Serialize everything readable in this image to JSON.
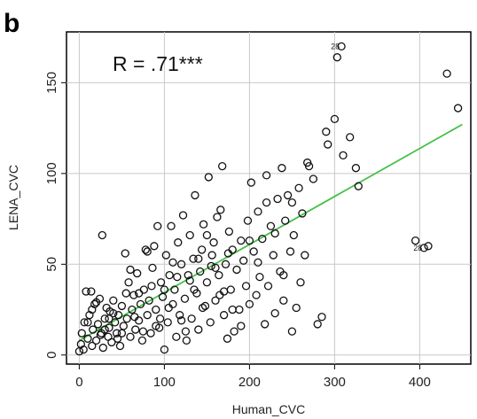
{
  "panel_label": "b",
  "chart_data": {
    "type": "scatter",
    "xlabel": "Human_CVC",
    "ylabel": "LENA_CVC",
    "xlim": [
      -15,
      460
    ],
    "ylim": [
      -5,
      178
    ],
    "xticks": [
      0,
      100,
      200,
      300,
      400
    ],
    "yticks": [
      0,
      50,
      100,
      150
    ],
    "grid": true,
    "annotation": "R = .71***",
    "regression": {
      "x": [
        0,
        450
      ],
      "y": [
        8,
        127
      ],
      "color": "#44c044"
    },
    "point_color": "#111111",
    "labeled_points": [
      {
        "label": "28",
        "x": 308,
        "y": 170
      },
      {
        "label": "28",
        "x": 405,
        "y": 59
      }
    ],
    "points": [
      [
        0,
        2
      ],
      [
        2,
        6
      ],
      [
        3,
        12
      ],
      [
        5,
        3
      ],
      [
        6,
        18
      ],
      [
        8,
        35
      ],
      [
        10,
        9
      ],
      [
        12,
        22
      ],
      [
        14,
        35
      ],
      [
        15,
        5
      ],
      [
        16,
        14
      ],
      [
        18,
        28
      ],
      [
        20,
        8
      ],
      [
        22,
        17
      ],
      [
        24,
        31
      ],
      [
        26,
        12
      ],
      [
        27,
        66
      ],
      [
        28,
        4
      ],
      [
        30,
        20
      ],
      [
        32,
        26
      ],
      [
        34,
        10
      ],
      [
        35,
        15
      ],
      [
        36,
        24
      ],
      [
        38,
        7
      ],
      [
        40,
        30
      ],
      [
        42,
        18
      ],
      [
        44,
        12
      ],
      [
        46,
        22
      ],
      [
        48,
        5
      ],
      [
        50,
        27
      ],
      [
        52,
        16
      ],
      [
        54,
        56
      ],
      [
        56,
        20
      ],
      [
        58,
        40
      ],
      [
        60,
        10
      ],
      [
        62,
        25
      ],
      [
        64,
        33
      ],
      [
        66,
        14
      ],
      [
        68,
        45
      ],
      [
        70,
        19
      ],
      [
        72,
        28
      ],
      [
        74,
        8
      ],
      [
        76,
        36
      ],
      [
        78,
        58
      ],
      [
        80,
        22
      ],
      [
        82,
        30
      ],
      [
        84,
        12
      ],
      [
        86,
        48
      ],
      [
        88,
        60
      ],
      [
        90,
        25
      ],
      [
        92,
        71
      ],
      [
        94,
        15
      ],
      [
        96,
        40
      ],
      [
        98,
        32
      ],
      [
        100,
        3
      ],
      [
        102,
        55
      ],
      [
        104,
        18
      ],
      [
        106,
        44
      ],
      [
        108,
        71
      ],
      [
        110,
        28
      ],
      [
        112,
        36
      ],
      [
        114,
        10
      ],
      [
        116,
        62
      ],
      [
        118,
        22
      ],
      [
        120,
        50
      ],
      [
        122,
        77
      ],
      [
        124,
        31
      ],
      [
        126,
        8
      ],
      [
        128,
        44
      ],
      [
        130,
        66
      ],
      [
        132,
        20
      ],
      [
        134,
        53
      ],
      [
        136,
        88
      ],
      [
        138,
        34
      ],
      [
        140,
        14
      ],
      [
        142,
        46
      ],
      [
        144,
        58
      ],
      [
        146,
        72
      ],
      [
        148,
        27
      ],
      [
        150,
        40
      ],
      [
        152,
        98
      ],
      [
        154,
        18
      ],
      [
        156,
        55
      ],
      [
        158,
        62
      ],
      [
        160,
        30
      ],
      [
        162,
        76
      ],
      [
        164,
        44
      ],
      [
        166,
        80
      ],
      [
        168,
        104
      ],
      [
        170,
        22
      ],
      [
        172,
        50
      ],
      [
        174,
        9
      ],
      [
        176,
        68
      ],
      [
        178,
        36
      ],
      [
        180,
        58
      ],
      [
        182,
        13
      ],
      [
        185,
        47
      ],
      [
        188,
        25
      ],
      [
        190,
        63
      ],
      [
        193,
        52
      ],
      [
        196,
        38
      ],
      [
        198,
        74
      ],
      [
        200,
        28
      ],
      [
        202,
        95
      ],
      [
        205,
        57
      ],
      [
        208,
        33
      ],
      [
        210,
        79
      ],
      [
        212,
        43
      ],
      [
        215,
        64
      ],
      [
        218,
        17
      ],
      [
        220,
        99
      ],
      [
        222,
        38
      ],
      [
        225,
        71
      ],
      [
        228,
        55
      ],
      [
        230,
        23
      ],
      [
        233,
        86
      ],
      [
        236,
        46
      ],
      [
        238,
        103
      ],
      [
        240,
        30
      ],
      [
        242,
        74
      ],
      [
        245,
        88
      ],
      [
        248,
        57
      ],
      [
        250,
        13
      ],
      [
        252,
        66
      ],
      [
        255,
        26
      ],
      [
        258,
        92
      ],
      [
        260,
        40
      ],
      [
        262,
        78
      ],
      [
        265,
        55
      ],
      [
        268,
        106
      ],
      [
        270,
        104
      ],
      [
        275,
        97
      ],
      [
        280,
        17
      ],
      [
        285,
        21
      ],
      [
        290,
        123
      ],
      [
        292,
        116
      ],
      [
        300,
        130
      ],
      [
        303,
        164
      ],
      [
        310,
        110
      ],
      [
        318,
        120
      ],
      [
        325,
        103
      ],
      [
        328,
        93
      ],
      [
        395,
        63
      ],
      [
        410,
        60
      ],
      [
        432,
        155
      ],
      [
        445,
        136
      ],
      [
        15,
        25
      ],
      [
        25,
        11
      ],
      [
        35,
        20
      ],
      [
        45,
        9
      ],
      [
        55,
        34
      ],
      [
        65,
        21
      ],
      [
        75,
        13
      ],
      [
        85,
        38
      ],
      [
        95,
        20
      ],
      [
        105,
        26
      ],
      [
        115,
        43
      ],
      [
        125,
        13
      ],
      [
        135,
        36
      ],
      [
        145,
        26
      ],
      [
        155,
        49
      ],
      [
        165,
        33
      ],
      [
        175,
        56
      ],
      [
        10,
        18
      ],
      [
        20,
        29
      ],
      [
        30,
        14
      ],
      [
        40,
        23
      ],
      [
        50,
        12
      ],
      [
        60,
        47
      ],
      [
        70,
        34
      ],
      [
        80,
        57
      ],
      [
        90,
        16
      ],
      [
        100,
        36
      ],
      [
        110,
        51
      ],
      [
        120,
        19
      ],
      [
        130,
        41
      ],
      [
        140,
        53
      ],
      [
        150,
        66
      ],
      [
        160,
        48
      ],
      [
        170,
        35
      ],
      [
        180,
        25
      ],
      [
        190,
        16
      ],
      [
        200,
        63
      ],
      [
        210,
        51
      ],
      [
        220,
        84
      ],
      [
        230,
        67
      ],
      [
        240,
        44
      ],
      [
        250,
        84
      ]
    ]
  }
}
